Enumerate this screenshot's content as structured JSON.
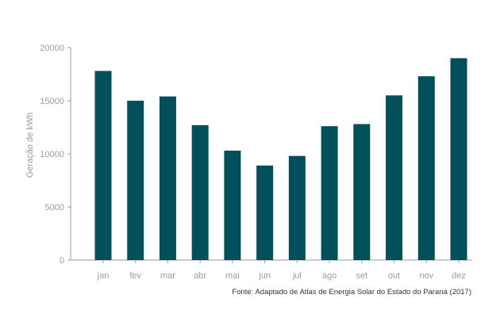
{
  "chart_data": {
    "type": "bar",
    "categories": [
      "jan",
      "fev",
      "mar",
      "abr",
      "mai",
      "jun",
      "jul",
      "ago",
      "set",
      "out",
      "nov",
      "dez"
    ],
    "values": [
      17800,
      15000,
      15400,
      12700,
      10300,
      8900,
      9800,
      12600,
      12800,
      15500,
      17300,
      19000
    ],
    "title": "",
    "xlabel": "",
    "ylabel": "Geração de kWh",
    "ylim": [
      0,
      20000
    ],
    "yticks": [
      0,
      5000,
      10000,
      15000,
      20000
    ],
    "grid": false,
    "bar_color": "#00505c",
    "axis_color": "#9a9a9a"
  },
  "source_note": "Fonte: Adaptado de Atlas de Energia Solar do Estado do Paraná (2017)"
}
